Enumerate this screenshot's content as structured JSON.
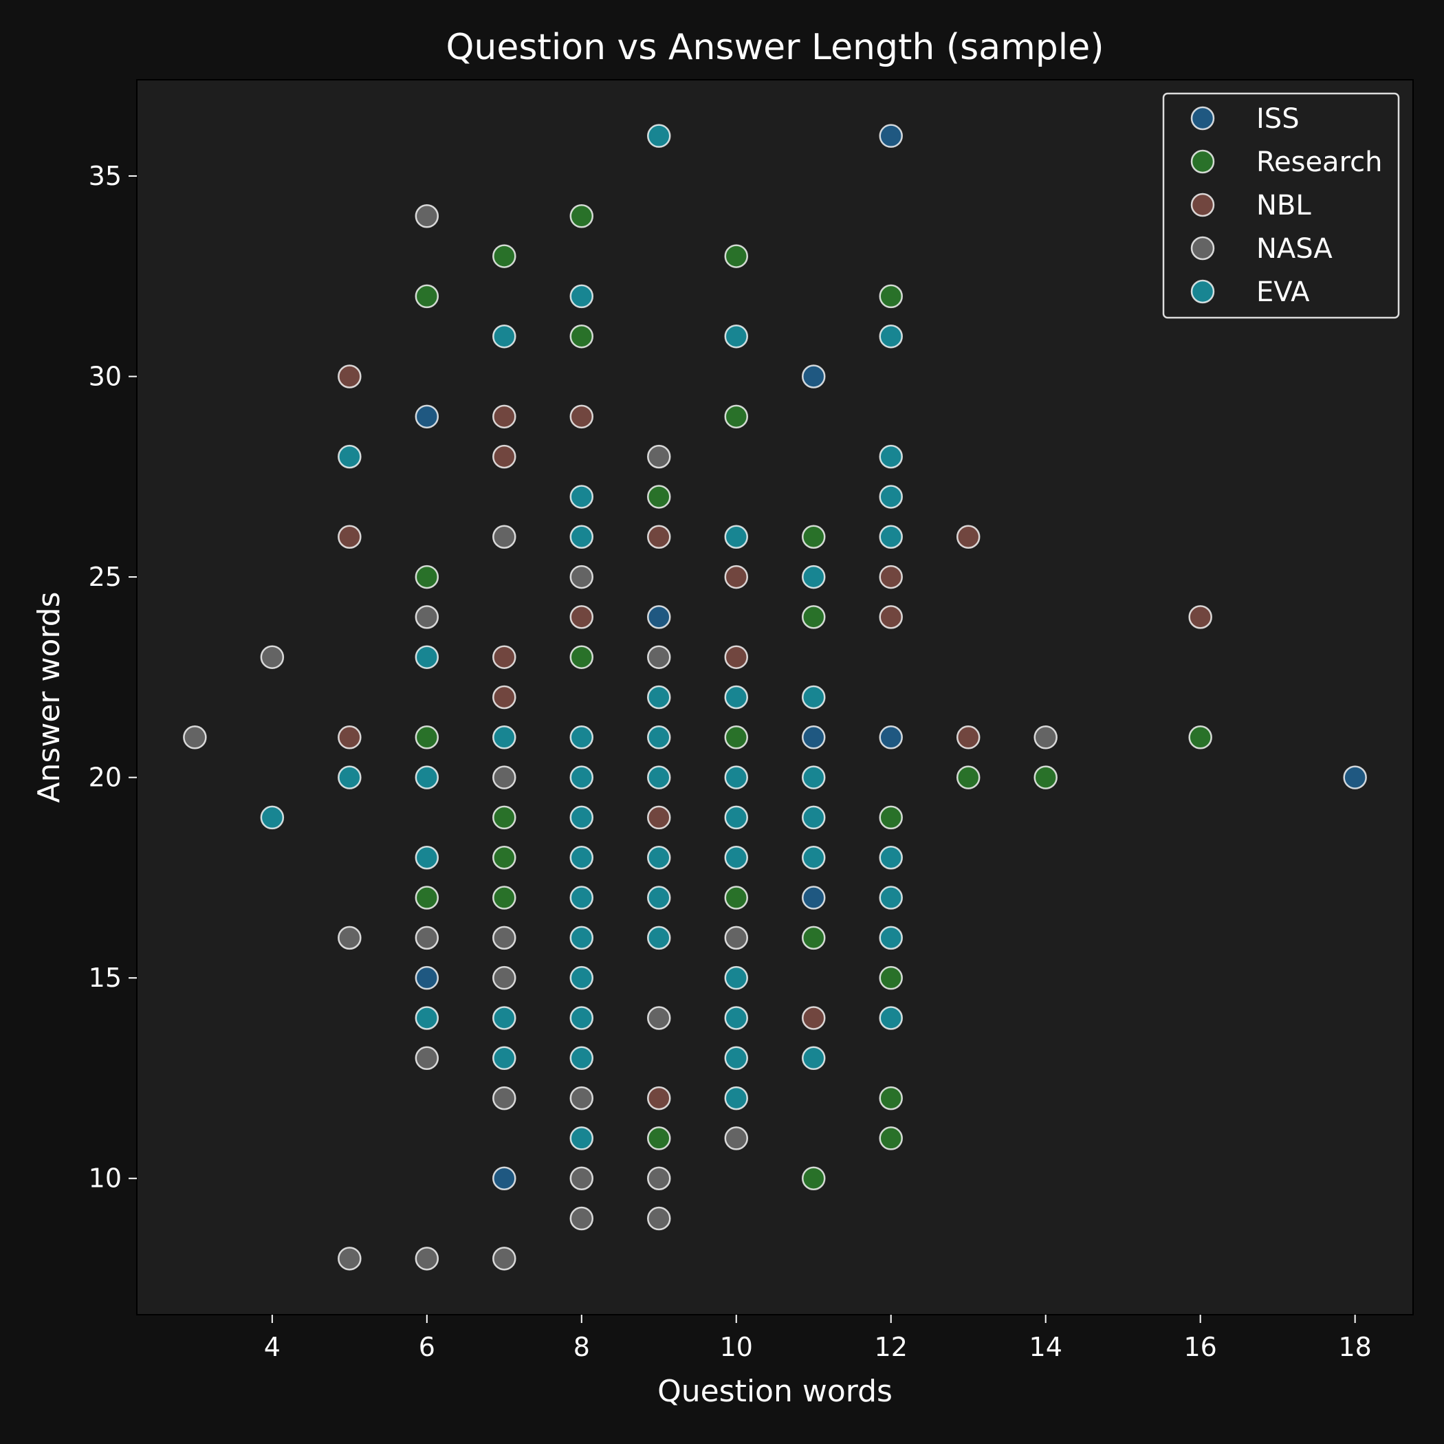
{
  "chart_data": {
    "type": "scatter",
    "title": "Question vs Answer Length (sample)",
    "xlabel": "Question words",
    "ylabel": "Answer words",
    "xlim": [
      2.25,
      18.75
    ],
    "ylim": [
      6.6,
      37.4
    ],
    "xticks": [
      4,
      6,
      8,
      10,
      12,
      14,
      16,
      18
    ],
    "yticks": [
      10,
      15,
      20,
      25,
      30,
      35
    ],
    "grid": false,
    "legend_position": "top-right",
    "background": "#111111",
    "plot_background": "#1e1e1e",
    "series": [
      {
        "name": "ISS",
        "color": "#1f5e8c",
        "points": [
          [
            12,
            36
          ],
          [
            11,
            30
          ],
          [
            6,
            29
          ],
          [
            9,
            24
          ],
          [
            11,
            21
          ],
          [
            12,
            21
          ],
          [
            18,
            20
          ],
          [
            11,
            17
          ],
          [
            6,
            15
          ],
          [
            7,
            10
          ]
        ]
      },
      {
        "name": "Research",
        "color": "#2a7a2a",
        "points": [
          [
            8,
            34
          ],
          [
            7,
            33
          ],
          [
            10,
            33
          ],
          [
            6,
            32
          ],
          [
            12,
            32
          ],
          [
            8,
            31
          ],
          [
            10,
            29
          ],
          [
            9,
            27
          ],
          [
            11,
            26
          ],
          [
            6,
            25
          ],
          [
            11,
            24
          ],
          [
            8,
            23
          ],
          [
            6,
            21
          ],
          [
            10,
            21
          ],
          [
            16,
            21
          ],
          [
            13,
            20
          ],
          [
            14,
            20
          ],
          [
            12,
            19
          ],
          [
            7,
            19
          ],
          [
            7,
            18
          ],
          [
            6,
            17
          ],
          [
            7,
            17
          ],
          [
            10,
            17
          ],
          [
            11,
            16
          ],
          [
            12,
            15
          ],
          [
            12,
            12
          ],
          [
            9,
            11
          ],
          [
            12,
            11
          ],
          [
            11,
            10
          ]
        ]
      },
      {
        "name": "NBL",
        "color": "#7a4a42",
        "points": [
          [
            5,
            30
          ],
          [
            7,
            29
          ],
          [
            8,
            29
          ],
          [
            7,
            28
          ],
          [
            5,
            26
          ],
          [
            9,
            26
          ],
          [
            13,
            26
          ],
          [
            10,
            25
          ],
          [
            12,
            25
          ],
          [
            12,
            24
          ],
          [
            16,
            24
          ],
          [
            7,
            23
          ],
          [
            10,
            23
          ],
          [
            7,
            22
          ],
          [
            5,
            21
          ],
          [
            13,
            21
          ],
          [
            9,
            19
          ],
          [
            9,
            12
          ],
          [
            8,
            24
          ],
          [
            11,
            14
          ]
        ]
      },
      {
        "name": "NASA",
        "color": "#6b6b6b",
        "points": [
          [
            6,
            34
          ],
          [
            9,
            28
          ],
          [
            7,
            26
          ],
          [
            8,
            25
          ],
          [
            6,
            24
          ],
          [
            4,
            23
          ],
          [
            9,
            23
          ],
          [
            3,
            21
          ],
          [
            14,
            21
          ],
          [
            7,
            20
          ],
          [
            5,
            16
          ],
          [
            6,
            16
          ],
          [
            7,
            16
          ],
          [
            10,
            16
          ],
          [
            7,
            15
          ],
          [
            9,
            14
          ],
          [
            6,
            13
          ],
          [
            7,
            12
          ],
          [
            8,
            12
          ],
          [
            10,
            11
          ],
          [
            8,
            10
          ],
          [
            9,
            10
          ],
          [
            8,
            9
          ],
          [
            9,
            9
          ],
          [
            5,
            8
          ],
          [
            6,
            8
          ],
          [
            7,
            8
          ]
        ]
      },
      {
        "name": "EVA",
        "color": "#17909e",
        "points": [
          [
            9,
            36
          ],
          [
            8,
            32
          ],
          [
            7,
            31
          ],
          [
            10,
            31
          ],
          [
            12,
            31
          ],
          [
            5,
            28
          ],
          [
            12,
            28
          ],
          [
            8,
            27
          ],
          [
            12,
            27
          ],
          [
            8,
            26
          ],
          [
            10,
            26
          ],
          [
            12,
            26
          ],
          [
            11,
            25
          ],
          [
            6,
            23
          ],
          [
            9,
            22
          ],
          [
            10,
            22
          ],
          [
            11,
            22
          ],
          [
            7,
            21
          ],
          [
            8,
            21
          ],
          [
            9,
            21
          ],
          [
            5,
            20
          ],
          [
            6,
            20
          ],
          [
            8,
            20
          ],
          [
            9,
            20
          ],
          [
            10,
            20
          ],
          [
            11,
            20
          ],
          [
            4,
            19
          ],
          [
            8,
            19
          ],
          [
            10,
            19
          ],
          [
            11,
            19
          ],
          [
            6,
            18
          ],
          [
            8,
            18
          ],
          [
            9,
            18
          ],
          [
            10,
            18
          ],
          [
            11,
            18
          ],
          [
            12,
            18
          ],
          [
            8,
            17
          ],
          [
            9,
            17
          ],
          [
            12,
            17
          ],
          [
            8,
            16
          ],
          [
            9,
            16
          ],
          [
            12,
            16
          ],
          [
            8,
            15
          ],
          [
            10,
            15
          ],
          [
            6,
            14
          ],
          [
            7,
            14
          ],
          [
            8,
            14
          ],
          [
            10,
            14
          ],
          [
            12,
            14
          ],
          [
            7,
            13
          ],
          [
            8,
            13
          ],
          [
            10,
            13
          ],
          [
            11,
            13
          ],
          [
            10,
            12
          ],
          [
            8,
            11
          ]
        ]
      }
    ]
  }
}
